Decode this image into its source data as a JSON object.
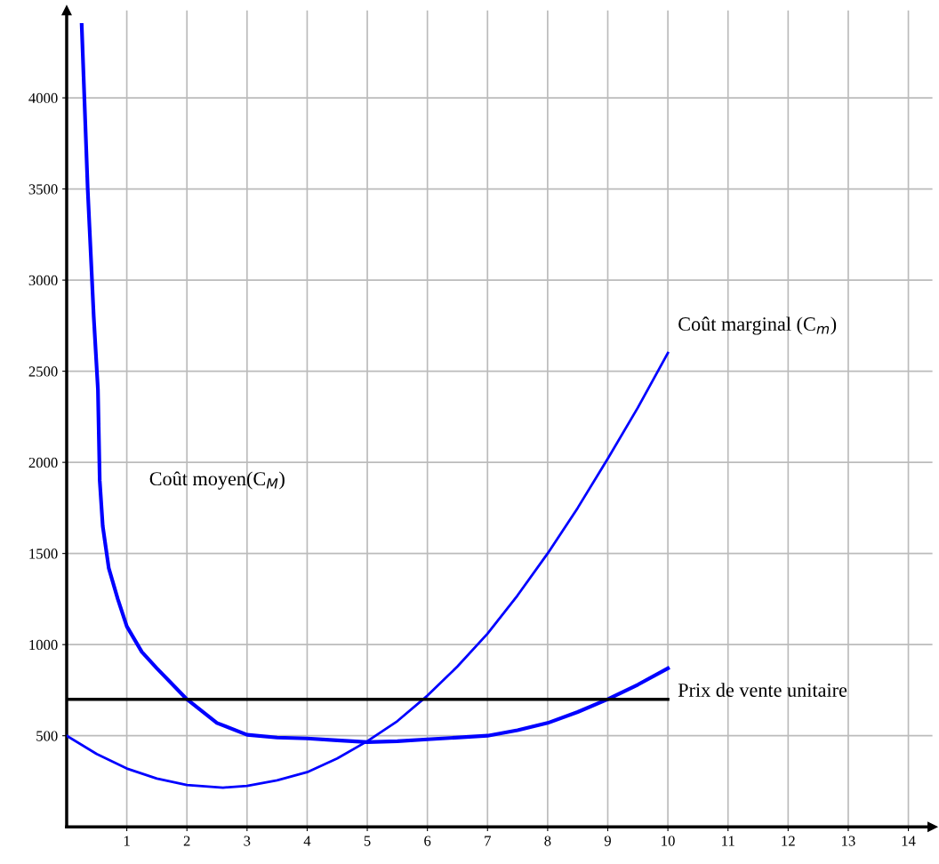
{
  "chart_data": {
    "type": "line",
    "xlim": [
      0,
      14.4
    ],
    "ylim": [
      0,
      4480
    ],
    "xticks": [
      1,
      2,
      3,
      4,
      5,
      6,
      7,
      8,
      9,
      10,
      11,
      12,
      13,
      14
    ],
    "yticks": [
      500,
      1000,
      1500,
      2000,
      2500,
      3000,
      3500,
      4000
    ],
    "grid": true,
    "marker": "none",
    "line_style": "solid",
    "series": [
      {
        "name": "Coût marginal (C$_{m}$)",
        "color": "#0000ff",
        "x": [
          0,
          0.5,
          1,
          1.5,
          2,
          2.6,
          3,
          3.5,
          4,
          4.5,
          5,
          5.5,
          6,
          6.5,
          7,
          7.5,
          8,
          8.5,
          9,
          9.5,
          10
        ],
        "values": [
          500,
          400,
          320,
          265,
          230,
          215,
          225,
          255,
          300,
          375,
          470,
          580,
          720,
          880,
          1060,
          1270,
          1500,
          1750,
          2020,
          2300,
          2600
        ]
      },
      {
        "name": "Coût moyen(C$_{M}$)",
        "color": "#0000ff",
        "x": [
          0.25,
          0.35,
          0.45,
          0.52,
          0.55,
          0.6,
          0.7,
          0.85,
          1,
          1.25,
          1.5,
          2,
          2.5,
          3,
          3.5,
          4,
          4.5,
          5,
          5.5,
          6,
          7,
          7.5,
          8,
          8.5,
          9,
          9.5,
          10
        ],
        "values": [
          4400,
          3500,
          2800,
          2400,
          1900,
          1650,
          1420,
          1250,
          1100,
          960,
          870,
          700,
          570,
          505,
          490,
          485,
          475,
          465,
          470,
          480,
          500,
          530,
          570,
          630,
          700,
          780,
          870
        ]
      },
      {
        "name": "Prix de vente unitaire",
        "color": "#000000",
        "x": [
          0,
          10
        ],
        "values": [
          700,
          700
        ]
      }
    ]
  }
}
